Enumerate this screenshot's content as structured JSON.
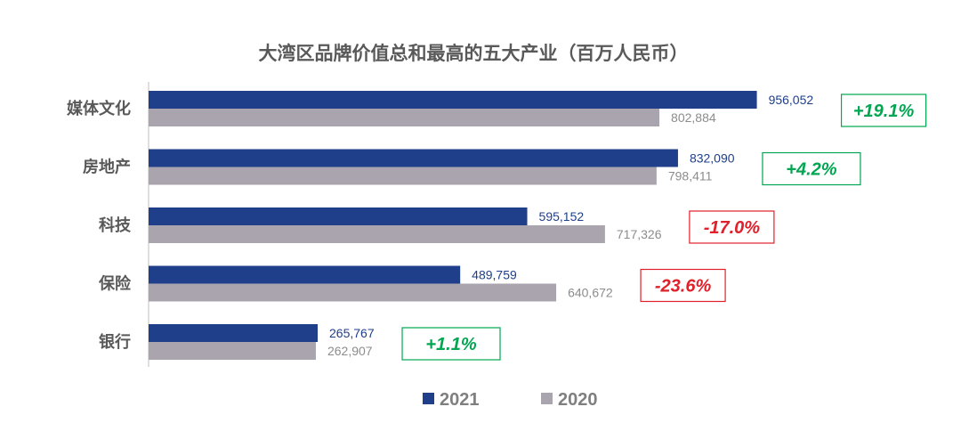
{
  "chart_data": {
    "type": "bar",
    "orientation": "horizontal",
    "title": "大湾区品牌价值总和最高的五大产业（百万人民币）",
    "categories": [
      "媒体文化",
      "房地产",
      "科技",
      "保险",
      "银行"
    ],
    "series": [
      {
        "name": "2021",
        "color": "#1f3f8a",
        "values": [
          956052,
          832090,
          595152,
          489759,
          265767
        ],
        "labels": [
          "956,052",
          "832,090",
          "595,152",
          "489,759",
          "265,767"
        ]
      },
      {
        "name": "2020",
        "color": "#a9a4ae",
        "values": [
          802884,
          798411,
          717326,
          640672,
          262907
        ],
        "labels": [
          "802,884",
          "798,411",
          "717,326",
          "640,672",
          "262,907"
        ]
      }
    ],
    "changes": [
      {
        "label": "+19.1%",
        "direction": "up"
      },
      {
        "label": "+4.2%",
        "direction": "up"
      },
      {
        "label": "-17.0%",
        "direction": "down"
      },
      {
        "label": "-23.6%",
        "direction": "down"
      },
      {
        "label": "+1.1%",
        "direction": "up"
      }
    ],
    "xlim": [
      0,
      1000000
    ],
    "grid": false,
    "legend_position": "bottom-center",
    "colors": {
      "series_2021": "#1f3f8a",
      "series_2020": "#a9a4ae",
      "label_2021": "#1f3f8a",
      "label_2020": "#8c8c8c",
      "positive": "#00a651",
      "negative": "#e0202a",
      "axis": "#bfbfbf"
    }
  }
}
